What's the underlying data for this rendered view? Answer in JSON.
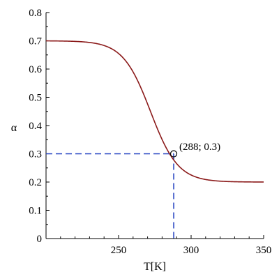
{
  "chart_data": {
    "type": "line",
    "title": "",
    "xlabel": "T[K]",
    "ylabel": "α",
    "xlim": [
      200,
      350
    ],
    "ylim": [
      0,
      0.8
    ],
    "x_ticks": [
      250,
      300,
      350
    ],
    "x_tick_labels": [
      "250",
      "300",
      "350"
    ],
    "y_ticks": [
      0,
      0.1,
      0.2,
      0.3,
      0.4,
      0.5,
      0.6,
      0.7,
      0.8
    ],
    "y_tick_labels": [
      "0",
      "0.1",
      "0.2",
      "0.3",
      "0.4",
      "0.5",
      "0.6",
      "0.7",
      "0.8"
    ],
    "grid": false,
    "series": [
      {
        "color": "#8b1a1a",
        "x": [
          200,
          210,
          220,
          225,
          230,
          235,
          240,
          245,
          250,
          255,
          260,
          265,
          270,
          275,
          280,
          285,
          288,
          290,
          295,
          300,
          305,
          310,
          320,
          330,
          340,
          350
        ],
        "y": [
          0.698,
          0.697,
          0.694,
          0.69,
          0.683,
          0.671,
          0.652,
          0.625,
          0.587,
          0.54,
          0.485,
          0.428,
          0.374,
          0.33,
          0.298,
          0.276,
          0.3,
          0.256,
          0.238,
          0.226,
          0.218,
          0.212,
          0.206,
          0.203,
          0.201,
          0.2
        ]
      }
    ],
    "marked_point": {
      "x": 288,
      "y": 0.3,
      "label": "(288; 0.3)"
    },
    "guide_color": "#1f3fbf"
  }
}
